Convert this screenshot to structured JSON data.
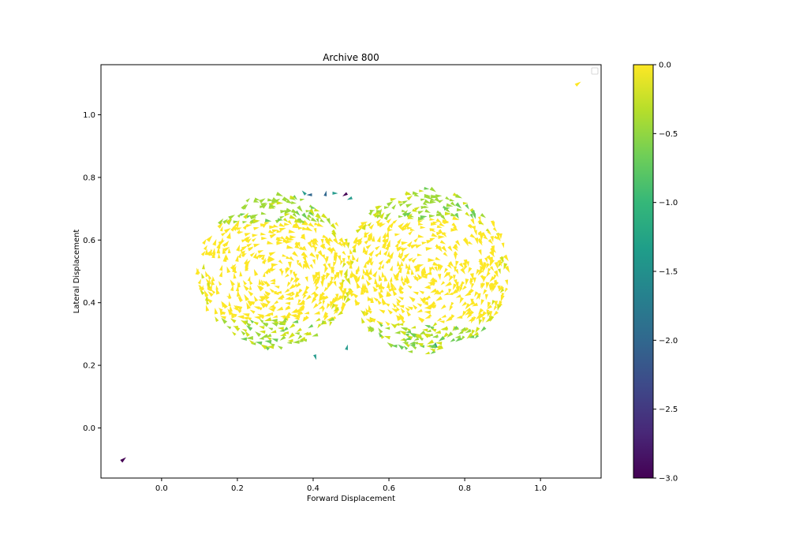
{
  "chart_data": {
    "type": "scatter",
    "title": "Archive 800",
    "xlabel": "Forward Displacement",
    "ylabel": "Lateral Displacement",
    "xlim": [
      -0.16,
      1.16
    ],
    "ylim": [
      -0.16,
      1.16
    ],
    "xticks": [
      "0.0",
      "0.2",
      "0.4",
      "0.6",
      "0.8",
      "1.0"
    ],
    "yticks": [
      "0.0",
      "0.2",
      "0.4",
      "0.6",
      "0.8",
      "1.0"
    ],
    "colorbar": {
      "colormap": "viridis",
      "range": [
        -3.0,
        0.0
      ],
      "ticks": [
        "0.0",
        "−0.5",
        "−1.0",
        "−1.5",
        "−2.0",
        "−2.5",
        "−3.0"
      ]
    },
    "legend": "top-right (empty)",
    "grid": false,
    "clusters": [
      {
        "center": [
          0.3,
          0.5
        ],
        "radius": [
          0.21,
          0.25
        ],
        "count": 620,
        "color_value": 0.0
      },
      {
        "center": [
          0.7,
          0.5
        ],
        "radius": [
          0.22,
          0.27
        ],
        "count": 680,
        "color_value": 0.0
      }
    ],
    "outliers": [
      {
        "x": 1.1,
        "y": 1.1,
        "value": 0.0
      },
      {
        "x": -0.1,
        "y": -0.1,
        "value": -3.0
      }
    ]
  },
  "colors": {
    "viridis": [
      "#440154",
      "#482878",
      "#3e4989",
      "#31688e",
      "#26828e",
      "#1f9e89",
      "#35b779",
      "#6ece58",
      "#b5de2b",
      "#fde725"
    ],
    "yellow": "#fde725",
    "yellow_green": "#d2e21b",
    "light_green": "#a0da39",
    "green": "#6ece58",
    "teal": "#2a9d8f",
    "blue": "#31688e",
    "purple": "#440154"
  }
}
